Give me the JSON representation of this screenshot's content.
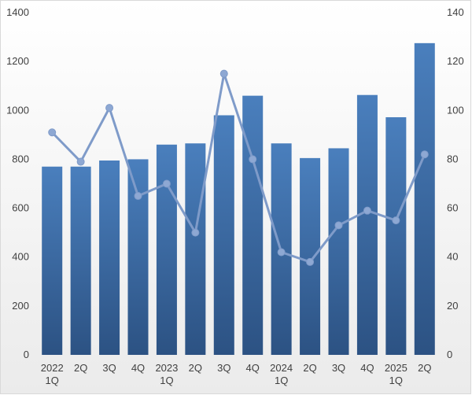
{
  "colors": {
    "bar_top": "#4a7fbd",
    "bar_bottom": "#2c5283",
    "line": "#7f9bc9",
    "marker": "#8ea8d3",
    "text": "#404040"
  },
  "chart_data": {
    "type": "bar",
    "title": "",
    "xlabel": "",
    "ylabel": "",
    "categories": [
      [
        "2022",
        "1Q"
      ],
      [
        "2Q"
      ],
      [
        "3Q"
      ],
      [
        "4Q"
      ],
      [
        "2023",
        "1Q"
      ],
      [
        "2Q"
      ],
      [
        "3Q"
      ],
      [
        "4Q"
      ],
      [
        "2024",
        "1Q"
      ],
      [
        "2Q"
      ],
      [
        "3Q"
      ],
      [
        "4Q"
      ],
      [
        "2025",
        "1Q"
      ],
      [
        "2Q"
      ]
    ],
    "series": [
      {
        "type": "bar",
        "axis": "left",
        "values": [
          770,
          770,
          795,
          800,
          860,
          865,
          980,
          1060,
          865,
          805,
          845,
          1063,
          972,
          1275
        ]
      },
      {
        "type": "line",
        "axis": "right",
        "values": [
          91,
          79,
          101,
          65,
          70,
          50,
          115,
          80,
          42,
          38,
          53,
          59,
          55,
          82
        ]
      }
    ],
    "y_left": {
      "ylim": [
        0,
        1400
      ],
      "ticks": [
        "0",
        "200",
        "400",
        "600",
        "800",
        "1000",
        "1200",
        "1400"
      ]
    },
    "y_right": {
      "ylim": [
        0,
        140
      ],
      "ticks": [
        "0",
        "20",
        "40",
        "60",
        "80",
        "100",
        "120",
        "140"
      ]
    },
    "grid": false,
    "legend": "none"
  }
}
